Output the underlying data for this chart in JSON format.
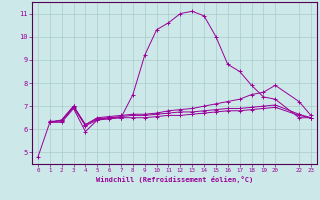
{
  "xlabel": "Windchill (Refroidissement éolien,°C)",
  "background_color": "#cce8e8",
  "line_color": "#990099",
  "grid_color": "#aacccc",
  "xlim": [
    -0.5,
    23.5
  ],
  "ylim": [
    4.5,
    11.5
  ],
  "xticks": [
    0,
    1,
    2,
    3,
    4,
    5,
    6,
    7,
    8,
    9,
    10,
    11,
    12,
    13,
    14,
    15,
    16,
    17,
    18,
    19,
    20,
    22,
    23
  ],
  "yticks": [
    5,
    6,
    7,
    8,
    9,
    10,
    11
  ],
  "lines": [
    {
      "x": [
        0,
        1,
        2,
        3,
        4,
        5,
        6,
        7,
        8,
        9,
        10,
        11,
        12,
        13,
        14,
        15,
        16,
        17,
        18,
        19,
        20,
        22,
        23
      ],
      "y": [
        4.8,
        6.3,
        6.3,
        6.9,
        5.9,
        6.4,
        6.5,
        6.5,
        7.5,
        9.2,
        10.3,
        10.6,
        11.0,
        11.1,
        10.9,
        10.0,
        8.8,
        8.5,
        7.9,
        7.4,
        7.3,
        6.5,
        6.5
      ]
    },
    {
      "x": [
        1,
        2,
        3,
        4,
        5,
        6,
        7,
        8,
        9,
        10,
        11,
        12,
        13,
        14,
        15,
        16,
        17,
        18,
        19,
        20,
        22,
        23
      ],
      "y": [
        6.3,
        6.4,
        7.0,
        6.2,
        6.5,
        6.55,
        6.6,
        6.65,
        6.65,
        6.7,
        6.8,
        6.85,
        6.9,
        7.0,
        7.1,
        7.2,
        7.3,
        7.5,
        7.6,
        7.9,
        7.2,
        6.6
      ]
    },
    {
      "x": [
        1,
        2,
        3,
        4,
        5,
        6,
        7,
        8,
        9,
        10,
        11,
        12,
        13,
        14,
        15,
        16,
        17,
        18,
        19,
        20,
        22,
        23
      ],
      "y": [
        6.3,
        6.4,
        7.0,
        6.2,
        6.45,
        6.5,
        6.55,
        6.6,
        6.6,
        6.65,
        6.7,
        6.75,
        6.75,
        6.8,
        6.85,
        6.9,
        6.9,
        6.95,
        7.0,
        7.05,
        6.65,
        6.5
      ]
    },
    {
      "x": [
        1,
        2,
        3,
        4,
        5,
        6,
        7,
        8,
        9,
        10,
        11,
        12,
        13,
        14,
        15,
        16,
        17,
        18,
        19,
        20,
        22,
        23
      ],
      "y": [
        6.35,
        6.35,
        6.95,
        6.15,
        6.4,
        6.45,
        6.5,
        6.5,
        6.5,
        6.55,
        6.6,
        6.6,
        6.65,
        6.7,
        6.75,
        6.8,
        6.8,
        6.85,
        6.9,
        6.95,
        6.6,
        6.5
      ]
    }
  ],
  "font_color": "#990099",
  "tick_color": "#990099",
  "axis_color": "#550055"
}
